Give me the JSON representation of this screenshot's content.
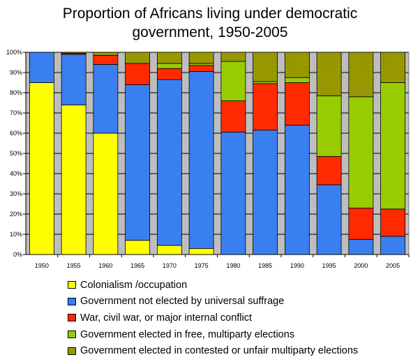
{
  "chart_data": {
    "type": "bar",
    "stacked": true,
    "title_lines": [
      "Proportion of Africans living under democratic",
      "government, 1950-2005"
    ],
    "categories": [
      "1950",
      "1955",
      "1960",
      "1965",
      "1970",
      "1975",
      "1980",
      "1985",
      "1990",
      "1995",
      "2000",
      "2005"
    ],
    "yticks": [
      "0%",
      "10%",
      "20%",
      "30%",
      "40%",
      "50%",
      "60%",
      "70%",
      "80%",
      "90%",
      "100%"
    ],
    "ylim": [
      0,
      100
    ],
    "grid": true,
    "legend_position": "bottom",
    "series": [
      {
        "name": "Colonialism /occupation",
        "color": "#ffff00",
        "values": [
          85,
          74,
          60,
          7,
          4.5,
          3,
          0,
          0,
          0,
          0,
          0,
          0
        ]
      },
      {
        "name": "Government not elected by universal suffrage",
        "color": "#3a7ff0",
        "values": [
          15,
          25,
          34,
          77,
          82,
          87.5,
          60.5,
          61.5,
          64,
          34.5,
          7.5,
          9
        ]
      },
      {
        "name": "War, civil war, or major internal conflict",
        "color": "#ff2a00",
        "values": [
          0,
          0.5,
          4.5,
          10.5,
          5.5,
          3,
          15.5,
          23,
          21,
          14,
          15.5,
          13.5
        ]
      },
      {
        "name": "Government elected in free, multiparty elections",
        "color": "#99cc00",
        "values": [
          0,
          0,
          0,
          0,
          2.5,
          1,
          19.5,
          1,
          2.5,
          30,
          55,
          62.5
        ]
      },
      {
        "name": "Government elected in contested or unfair multiparty elections",
        "color": "#999900",
        "values": [
          0,
          0.5,
          1.5,
          5.5,
          5.5,
          5.5,
          4.5,
          14.5,
          12.5,
          21.5,
          22,
          15
        ]
      }
    ],
    "colors": {
      "plot_background": "#c0c0c0",
      "gridline": "#000000"
    }
  }
}
